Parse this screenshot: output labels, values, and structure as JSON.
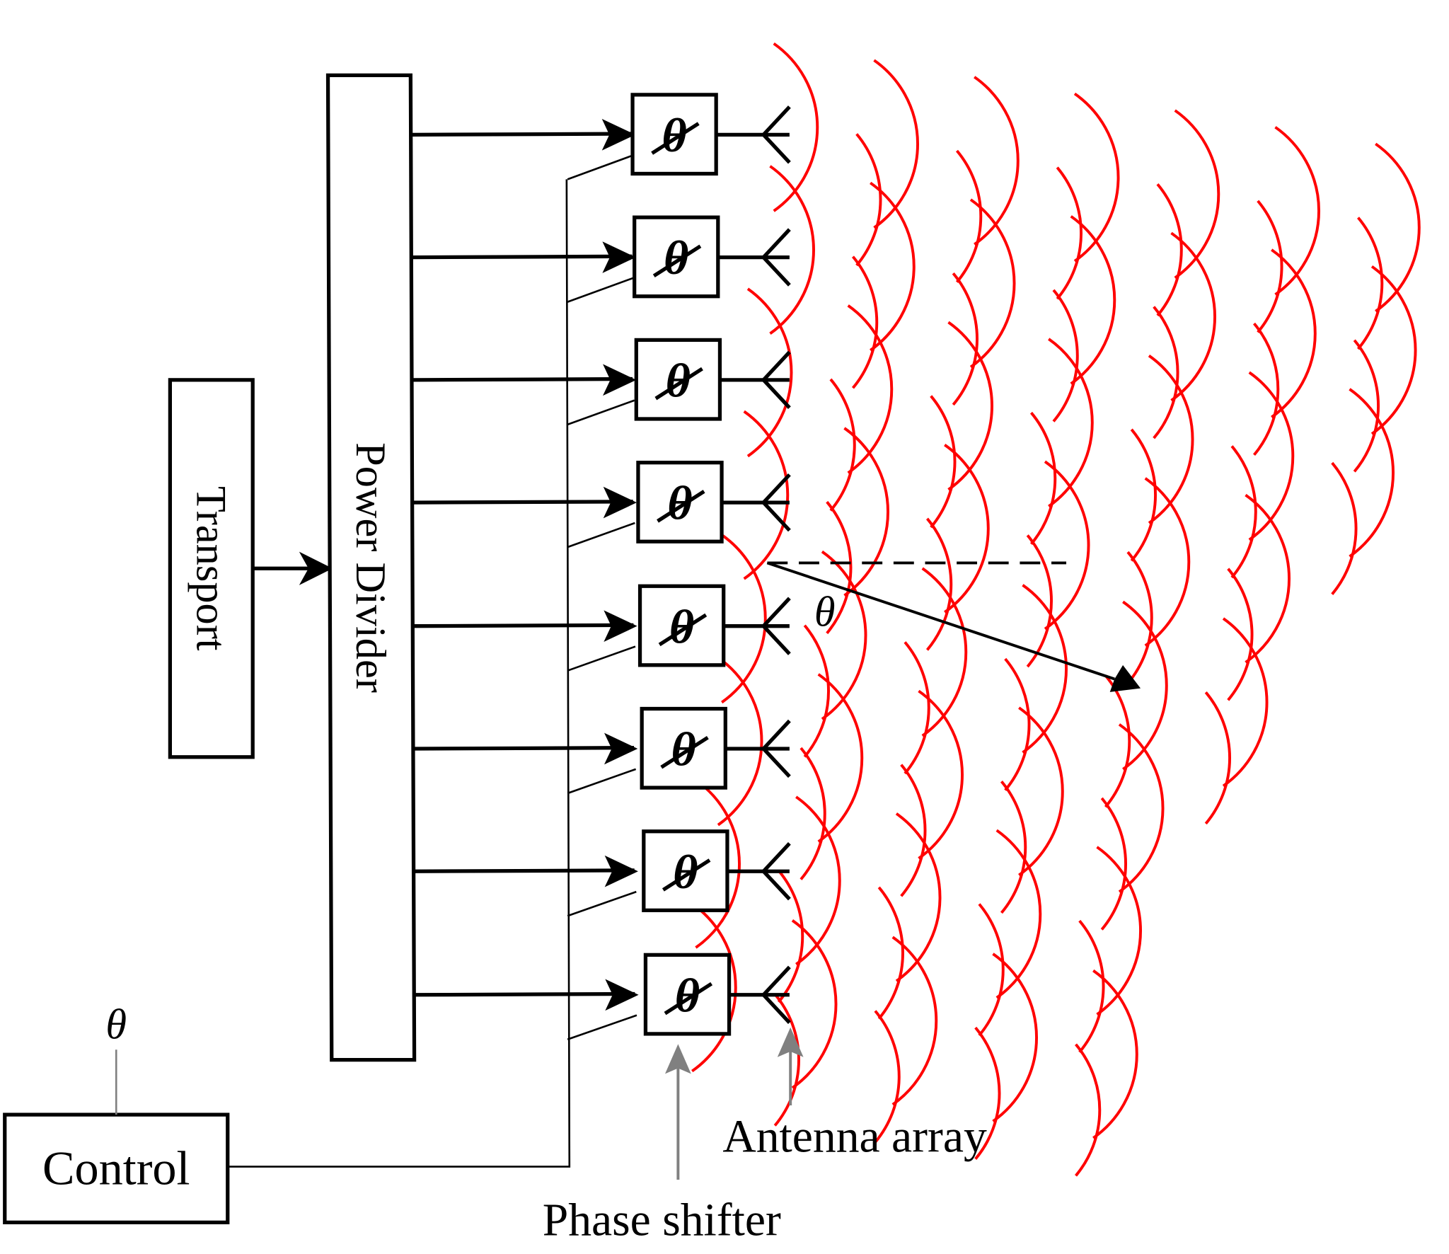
{
  "blocks": {
    "transport": "Transport",
    "power_divider": "Power Divider",
    "control": "Control",
    "phase_shifter_symbol": "θ"
  },
  "labels": {
    "control_theta": "θ",
    "steer_angle": "θ",
    "antenna_array": "Antenna array",
    "phase_shifter": "Phase shifter"
  },
  "element_count": 8,
  "colors": {
    "wave": "#ff0000",
    "lines": "#000000",
    "pointer": "#808080"
  }
}
